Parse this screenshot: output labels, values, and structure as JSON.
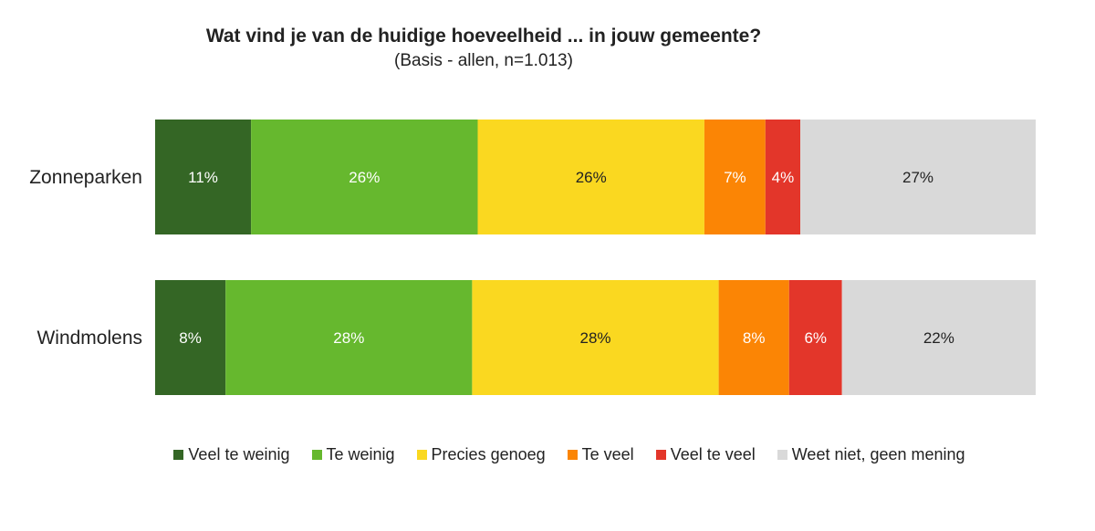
{
  "chart_data": {
    "type": "bar",
    "orientation": "horizontal-stacked-100",
    "title": "Wat vind je van de huidige hoeveelheid ... in jouw gemeente?",
    "subtitle": "(Basis - allen,  n=1.013)",
    "categories": [
      "Zonneparken",
      "Windmolens"
    ],
    "series": [
      {
        "name": "Veel te weinig",
        "color": "#346625",
        "label_color": "#ffffff",
        "values": [
          11,
          8
        ],
        "labels": [
          "11%",
          "8%"
        ]
      },
      {
        "name": "Te weinig",
        "color": "#66b82e",
        "label_color": "#ffffff",
        "values": [
          26,
          28
        ],
        "labels": [
          "26%",
          "28%"
        ]
      },
      {
        "name": "Precies genoeg",
        "color": "#fad820",
        "label_color": "#222222",
        "values": [
          26,
          28
        ],
        "labels": [
          "26%",
          "28%"
        ]
      },
      {
        "name": "Te veel",
        "color": "#fb8505",
        "label_color": "#ffffff",
        "values": [
          7,
          8
        ],
        "labels": [
          "7%",
          "8%"
        ]
      },
      {
        "name": "Veel te veel",
        "color": "#e3362a",
        "label_color": "#ffffff",
        "values": [
          4,
          6
        ],
        "labels": [
          "4%",
          "6%"
        ]
      },
      {
        "name": "Weet niet, geen mening",
        "color": "#d9d9d9",
        "label_color": "#222222",
        "values": [
          27,
          22
        ],
        "labels": [
          "27%",
          "22%"
        ]
      }
    ],
    "legend_position": "bottom",
    "grid": false
  }
}
